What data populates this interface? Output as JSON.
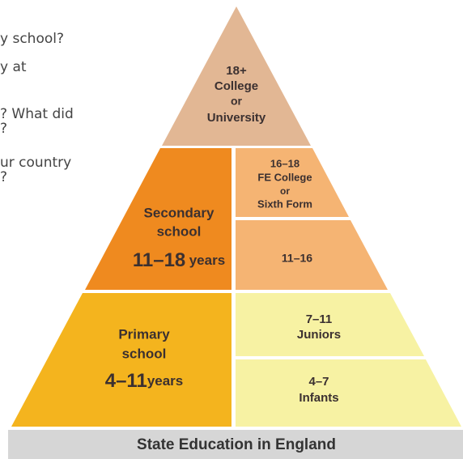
{
  "intro_text": [
    "y school?",
    "y at",
    "? What did",
    "?",
    "ur country",
    "?"
  ],
  "top": {
    "lines": [
      "18+",
      "College",
      "or",
      "University"
    ]
  },
  "secondary": {
    "name_lines": [
      "Secondary",
      "school"
    ],
    "ages": "11–18",
    "unit": "years"
  },
  "sixth_form": {
    "lines": [
      "16–18",
      "FE College",
      "or",
      "Sixth Form"
    ]
  },
  "lower_secondary": {
    "lines": [
      "11–16"
    ]
  },
  "primary": {
    "name_lines": [
      "Primary",
      "school"
    ],
    "ages": "4–11",
    "unit": "years"
  },
  "juniors": {
    "lines": [
      "7–11",
      "Juniors"
    ]
  },
  "infants": {
    "lines": [
      "4–7",
      "Infants"
    ]
  },
  "footer": {
    "title": "State Education in England"
  }
}
